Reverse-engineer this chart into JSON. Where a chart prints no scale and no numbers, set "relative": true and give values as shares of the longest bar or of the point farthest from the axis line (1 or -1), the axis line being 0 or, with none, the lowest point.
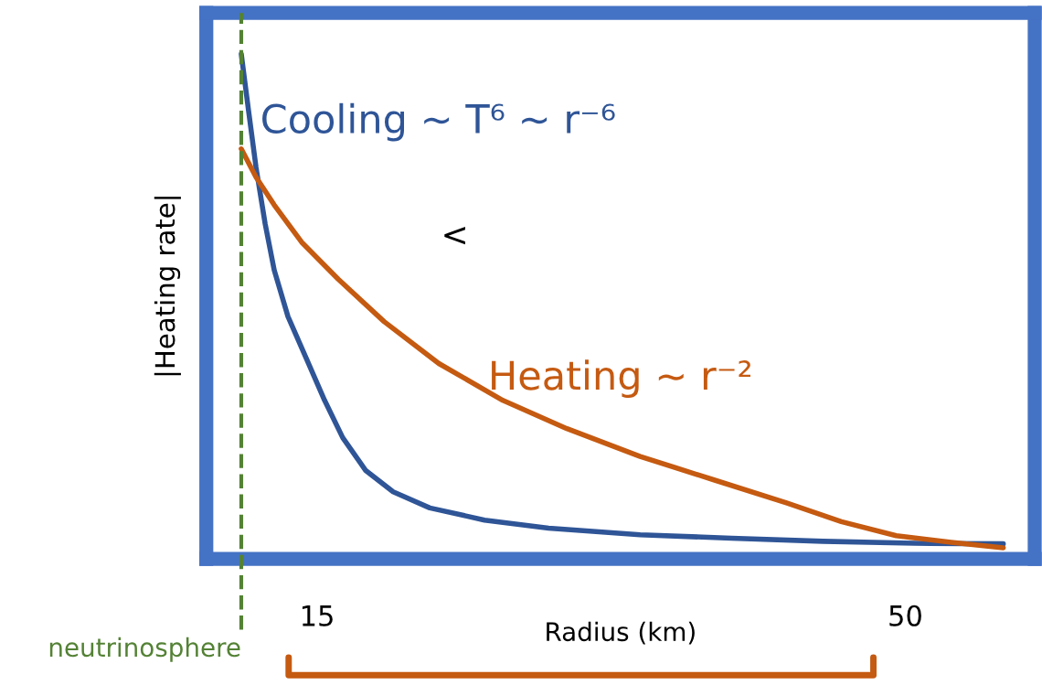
{
  "chart_data": {
    "type": "line",
    "relative": true,
    "xlabel": "Radius (km)",
    "ylabel": "|Heating rate|",
    "xlim": [
      8.4,
      57.7
    ],
    "xticks": [
      15,
      50
    ],
    "grid": false,
    "legend": false,
    "annotations": [
      "<"
    ],
    "ref_lines": [
      {
        "axis": "x",
        "value": 10.48,
        "label": "neutrinosphere",
        "color": "#548235",
        "line_style": "dashed"
      }
    ],
    "series": [
      {
        "name": "Cooling ∼ T⁶ ∼ r⁻⁶",
        "color": "#2f5597",
        "x": [
          10.48,
          10.92,
          11.36,
          11.9,
          12.44,
          13.26,
          14.35,
          15.44,
          16.52,
          17.89,
          19.52,
          21.7,
          24.96,
          28.77,
          34.22,
          39.66,
          45.1,
          50.55,
          55.83
        ],
        "values": [
          1.0,
          0.886,
          0.775,
          0.664,
          0.572,
          0.48,
          0.397,
          0.314,
          0.24,
          0.175,
          0.133,
          0.101,
          0.077,
          0.061,
          0.048,
          0.041,
          0.035,
          0.031,
          0.03
        ]
      },
      {
        "name": "Heating ∼ r⁻²",
        "color": "#c55a11",
        "x": [
          10.48,
          11.36,
          12.44,
          14.08,
          16.25,
          18.98,
          22.24,
          26.05,
          29.86,
          34.22,
          38.57,
          42.93,
          46.19,
          49.46,
          52.73,
          55.83
        ],
        "values": [
          0.812,
          0.756,
          0.701,
          0.627,
          0.554,
          0.47,
          0.387,
          0.314,
          0.258,
          0.203,
          0.157,
          0.111,
          0.074,
          0.046,
          0.033,
          0.022
        ]
      }
    ]
  }
}
